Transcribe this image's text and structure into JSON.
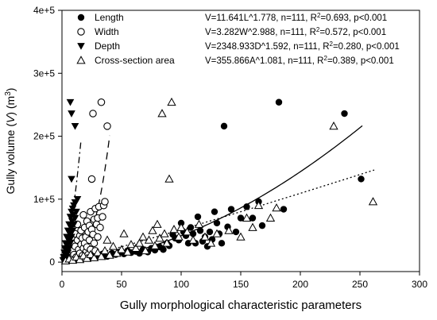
{
  "chart_data": {
    "type": "scatter",
    "xlabel": "Gully morphological characteristic parameters",
    "ylabel_parts": [
      "Gully volume (",
      "V",
      ") (m",
      "3",
      ")"
    ],
    "xlim": [
      0,
      300
    ],
    "ylim": [
      -15000,
      400000
    ],
    "xticks": [
      0,
      50,
      100,
      150,
      200,
      250,
      300
    ],
    "yticks": [
      {
        "value": 0,
        "label": "0"
      },
      {
        "value": 100000,
        "label": "1e+5"
      },
      {
        "value": 200000,
        "label": "2e+5"
      },
      {
        "value": 300000,
        "label": "3e+5"
      },
      {
        "value": 400000,
        "label": "4e+5"
      }
    ],
    "legend_position": "top-left",
    "grid": false,
    "series": [
      {
        "name": "Length",
        "marker": "filled-circle",
        "fit": {
          "a": 11.641,
          "b": 1.778,
          "x_range": [
            4,
            252
          ],
          "dash": "none"
        },
        "equation": {
          "main": "V=11.641L^1.778, n=111, R",
          "sup": "2",
          "rest": "=0.693, p<0.001"
        },
        "points": [
          [
            5,
            4000
          ],
          [
            8,
            7000
          ],
          [
            12,
            9000
          ],
          [
            15,
            6000
          ],
          [
            18,
            11000
          ],
          [
            22,
            8000
          ],
          [
            26,
            12000
          ],
          [
            30,
            10000
          ],
          [
            34,
            13000
          ],
          [
            38,
            9000
          ],
          [
            42,
            14000
          ],
          [
            45,
            12000
          ],
          [
            48,
            16000
          ],
          [
            52,
            13000
          ],
          [
            55,
            18000
          ],
          [
            58,
            15000
          ],
          [
            62,
            17000
          ],
          [
            65,
            14000
          ],
          [
            68,
            20000
          ],
          [
            72,
            16000
          ],
          [
            75,
            22000
          ],
          [
            78,
            19000
          ],
          [
            82,
            24000
          ],
          [
            85,
            20000
          ],
          [
            88,
            30000
          ],
          [
            90,
            26000
          ],
          [
            93,
            44000
          ],
          [
            95,
            38000
          ],
          [
            98,
            35000
          ],
          [
            100,
            62000
          ],
          [
            102,
            48000
          ],
          [
            104,
            42000
          ],
          [
            106,
            30000
          ],
          [
            108,
            55000
          ],
          [
            110,
            45000
          ],
          [
            112,
            30000
          ],
          [
            114,
            72000
          ],
          [
            116,
            50000
          ],
          [
            118,
            33000
          ],
          [
            120,
            40000
          ],
          [
            122,
            25000
          ],
          [
            124,
            48000
          ],
          [
            126,
            36000
          ],
          [
            128,
            80000
          ],
          [
            130,
            62000
          ],
          [
            132,
            45000
          ],
          [
            134,
            30000
          ],
          [
            136,
            216000
          ],
          [
            139,
            56000
          ],
          [
            142,
            84000
          ],
          [
            146,
            48000
          ],
          [
            150,
            70000
          ],
          [
            155,
            88000
          ],
          [
            160,
            70000
          ],
          [
            165,
            96000
          ],
          [
            168,
            58000
          ],
          [
            182,
            254000
          ],
          [
            186,
            84000
          ],
          [
            237,
            236000
          ],
          [
            251,
            132000
          ]
        ]
      },
      {
        "name": "Width",
        "marker": "open-circle",
        "fit": {
          "a": 3.282,
          "b": 2.988,
          "x_range": [
            1,
            40
          ],
          "dash": "9,6"
        },
        "equation": {
          "main": "V=3.282W^2.988, n=111, R",
          "sup": "2",
          "rest": "=0.572, p<0.001"
        },
        "points": [
          [
            3,
            5000
          ],
          [
            4,
            12000
          ],
          [
            5,
            20000
          ],
          [
            5,
            8000
          ],
          [
            6,
            28000
          ],
          [
            6,
            15000
          ],
          [
            7,
            35000
          ],
          [
            7,
            10000
          ],
          [
            8,
            22000
          ],
          [
            8,
            5000
          ],
          [
            9,
            40000
          ],
          [
            9,
            18000
          ],
          [
            10,
            30000
          ],
          [
            10,
            12000
          ],
          [
            11,
            45000
          ],
          [
            11,
            25000
          ],
          [
            12,
            8000
          ],
          [
            13,
            35000
          ],
          [
            13,
            60000
          ],
          [
            14,
            20000
          ],
          [
            15,
            42000
          ],
          [
            15,
            14000
          ],
          [
            16,
            50000
          ],
          [
            16,
            28000
          ],
          [
            17,
            38000
          ],
          [
            17,
            10000
          ],
          [
            18,
            22000
          ],
          [
            18,
            75000
          ],
          [
            19,
            55000
          ],
          [
            19,
            30000
          ],
          [
            20,
            16000
          ],
          [
            20,
            40000
          ],
          [
            21,
            65000
          ],
          [
            21,
            24000
          ],
          [
            22,
            48000
          ],
          [
            22,
            12000
          ],
          [
            23,
            35000
          ],
          [
            23,
            58000
          ],
          [
            24,
            80000
          ],
          [
            24,
            20000
          ],
          [
            25,
            52000
          ],
          [
            25,
            132000
          ],
          [
            26,
            44000
          ],
          [
            26,
            236000
          ],
          [
            27,
            30000
          ],
          [
            27,
            68000
          ],
          [
            28,
            85000
          ],
          [
            28,
            18000
          ],
          [
            29,
            60000
          ],
          [
            30,
            40000
          ],
          [
            30,
            70000
          ],
          [
            31,
            88000
          ],
          [
            32,
            55000
          ],
          [
            33,
            254000
          ],
          [
            34,
            72000
          ],
          [
            35,
            90000
          ],
          [
            36,
            96000
          ],
          [
            38,
            216000
          ]
        ]
      },
      {
        "name": "Depth",
        "marker": "filled-triangle-down",
        "fit": {
          "a": 2348.933,
          "b": 1.592,
          "x_range": [
            0.5,
            16
          ],
          "dash": "8,4,2,4"
        },
        "equation": {
          "main": "V=2348.933D^1.592, n=111, R",
          "sup": "2",
          "rest": "=0.280, p<0.001"
        },
        "points": [
          [
            1,
            3000
          ],
          [
            1.5,
            8000
          ],
          [
            2,
            15000
          ],
          [
            2,
            5000
          ],
          [
            2.5,
            22000
          ],
          [
            3,
            12000
          ],
          [
            3,
            30000
          ],
          [
            3.5,
            18000
          ],
          [
            4,
            40000
          ],
          [
            4,
            8000
          ],
          [
            4.5,
            28000
          ],
          [
            5,
            50000
          ],
          [
            5,
            15000
          ],
          [
            5.5,
            35000
          ],
          [
            6,
            60000
          ],
          [
            6,
            22000
          ],
          [
            6.5,
            45000
          ],
          [
            7,
            72000
          ],
          [
            7,
            30000
          ],
          [
            7.5,
            55000
          ],
          [
            8,
            80000
          ],
          [
            8,
            40000
          ],
          [
            8.5,
            65000
          ],
          [
            9,
            85000
          ],
          [
            9,
            50000
          ],
          [
            9.5,
            75000
          ],
          [
            10,
            90000
          ],
          [
            10,
            60000
          ],
          [
            11,
            70000
          ],
          [
            11,
            95000
          ],
          [
            12,
            80000
          ],
          [
            13,
            100000
          ],
          [
            7,
            254000
          ],
          [
            8,
            236000
          ],
          [
            8,
            132000
          ],
          [
            11,
            216000
          ]
        ]
      },
      {
        "name": "Cross-section area",
        "marker": "open-triangle-up",
        "fit": {
          "a": 355.866,
          "b": 1.081,
          "x_range": [
            2,
            262
          ],
          "dash": "2,3"
        },
        "equation": {
          "main": "V=355.866A^1.081, n=111, R",
          "sup": "2",
          "rest": "=0.389, p<0.001"
        },
        "points": [
          [
            3,
            2000
          ],
          [
            6,
            5000
          ],
          [
            9,
            3000
          ],
          [
            12,
            8000
          ],
          [
            15,
            4000
          ],
          [
            18,
            10000
          ],
          [
            21,
            6000
          ],
          [
            24,
            12000
          ],
          [
            27,
            7000
          ],
          [
            30,
            15000
          ],
          [
            33,
            9000
          ],
          [
            36,
            18000
          ],
          [
            38,
            35000
          ],
          [
            40,
            11000
          ],
          [
            43,
            25000
          ],
          [
            46,
            14000
          ],
          [
            50,
            20000
          ],
          [
            52,
            45000
          ],
          [
            55,
            16000
          ],
          [
            58,
            28000
          ],
          [
            62,
            22000
          ],
          [
            65,
            30000
          ],
          [
            68,
            40000
          ],
          [
            70,
            18000
          ],
          [
            73,
            35000
          ],
          [
            76,
            50000
          ],
          [
            78,
            26000
          ],
          [
            80,
            60000
          ],
          [
            82,
            38000
          ],
          [
            84,
            236000
          ],
          [
            86,
            45000
          ],
          [
            88,
            30000
          ],
          [
            90,
            132000
          ],
          [
            92,
            254000
          ],
          [
            94,
            52000
          ],
          [
            98,
            40000
          ],
          [
            100,
            55000
          ],
          [
            105,
            48000
          ],
          [
            110,
            35000
          ],
          [
            115,
            60000
          ],
          [
            120,
            40000
          ],
          [
            125,
            30000
          ],
          [
            130,
            45000
          ],
          [
            140,
            50000
          ],
          [
            150,
            40000
          ],
          [
            155,
            70000
          ],
          [
            160,
            55000
          ],
          [
            165,
            90000
          ],
          [
            175,
            70000
          ],
          [
            180,
            86000
          ],
          [
            228,
            216000
          ],
          [
            261,
            96000
          ]
        ]
      }
    ]
  }
}
